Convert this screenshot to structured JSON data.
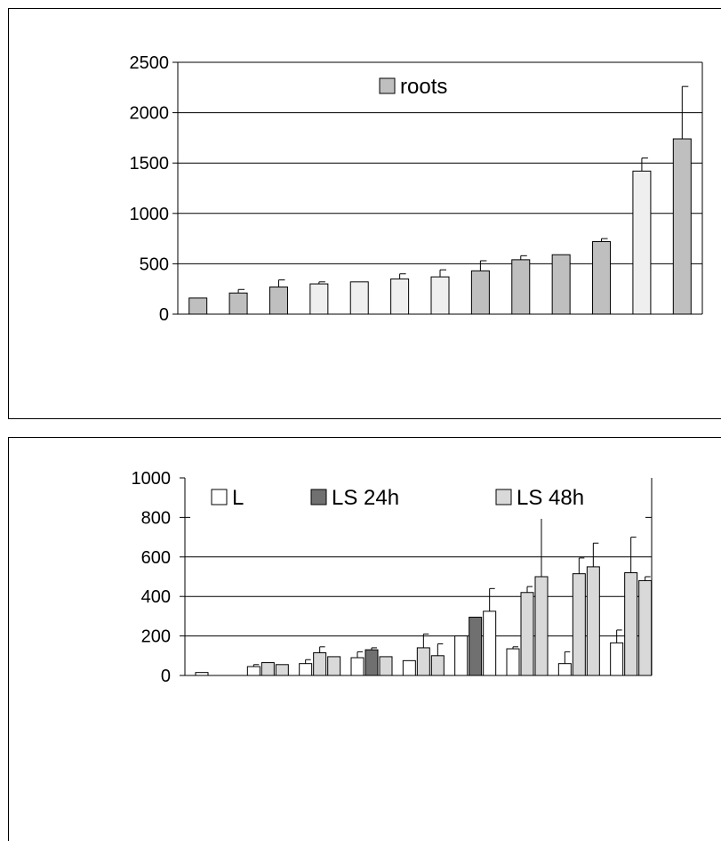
{
  "chart_data": [
    {
      "type": "bar",
      "title": "",
      "xlabel": "",
      "ylabel": "",
      "ylim": [
        0,
        2500
      ],
      "yticks": [
        0,
        500,
        1000,
        1500,
        2000,
        2500
      ],
      "grid": true,
      "legend_position": "top-center",
      "legend": [
        {
          "name": "roots",
          "color": "#bfbfbf"
        }
      ],
      "bars": [
        {
          "value": 160,
          "error": 0,
          "color": "#bfbfbf"
        },
        {
          "value": 210,
          "error": 35,
          "color": "#bfbfbf"
        },
        {
          "value": 270,
          "error": 70,
          "color": "#bfbfbf"
        },
        {
          "value": 300,
          "error": 20,
          "color": "#efefef"
        },
        {
          "value": 320,
          "error": 0,
          "color": "#efefef"
        },
        {
          "value": 350,
          "error": 50,
          "color": "#efefef"
        },
        {
          "value": 370,
          "error": 70,
          "color": "#efefef"
        },
        {
          "value": 430,
          "error": 100,
          "color": "#bfbfbf"
        },
        {
          "value": 540,
          "error": 40,
          "color": "#bfbfbf"
        },
        {
          "value": 590,
          "error": 0,
          "color": "#bfbfbf"
        },
        {
          "value": 720,
          "error": 30,
          "color": "#bfbfbf"
        },
        {
          "value": 1420,
          "error": 130,
          "color": "#efefef"
        },
        {
          "value": 1740,
          "error": 520,
          "color": "#bfbfbf"
        }
      ]
    },
    {
      "type": "bar",
      "title": "",
      "xlabel": "",
      "ylabel": "",
      "ylim": [
        0,
        1000
      ],
      "yticks": [
        0,
        200,
        400,
        600,
        800,
        1000
      ],
      "grid": true,
      "legend_position": "top",
      "series": [
        {
          "name": "L",
          "color": "#ffffff"
        },
        {
          "name": "LS 24h",
          "color": "#707070"
        },
        {
          "name": "LS 48h",
          "color": "#d9d9d9"
        }
      ],
      "groups": [
        [
          {
            "s": 0,
            "value": 15,
            "error": 0
          }
        ],
        [
          {
            "s": 0,
            "value": 45,
            "error": 10
          },
          {
            "s": 2,
            "value": 65,
            "error": 0
          },
          {
            "s": 2,
            "value": 55,
            "error": 0
          }
        ],
        [
          {
            "s": 0,
            "value": 60,
            "error": 20
          },
          {
            "s": 2,
            "value": 115,
            "error": 30
          },
          {
            "s": 2,
            "value": 95,
            "error": 0
          }
        ],
        [
          {
            "s": 0,
            "value": 90,
            "error": 30
          },
          {
            "s": 1,
            "value": 130,
            "error": 10
          },
          {
            "s": 2,
            "value": 95,
            "error": 0
          }
        ],
        [
          {
            "s": 0,
            "value": 75,
            "error": 0
          },
          {
            "s": 2,
            "value": 140,
            "error": 70
          },
          {
            "s": 2,
            "value": 100,
            "error": 60
          }
        ],
        [
          {
            "s": 0,
            "value": 200,
            "error": 0
          },
          {
            "s": 1,
            "value": 295,
            "error": 0
          },
          {
            "s": 0,
            "value": 325,
            "error": 115
          }
        ],
        [
          {
            "s": 0,
            "value": 135,
            "error": 10
          },
          {
            "s": 2,
            "value": 420,
            "error": 30
          },
          {
            "s": 2,
            "value": 500,
            "error": 310
          }
        ],
        [
          {
            "s": 0,
            "value": 60,
            "error": 60
          },
          {
            "s": 2,
            "value": 515,
            "error": 80
          },
          {
            "s": 2,
            "value": 550,
            "error": 120
          }
        ],
        [
          {
            "s": 0,
            "value": 165,
            "error": 65
          },
          {
            "s": 2,
            "value": 520,
            "error": 180
          },
          {
            "s": 2,
            "value": 480,
            "error": 20
          }
        ]
      ]
    }
  ]
}
